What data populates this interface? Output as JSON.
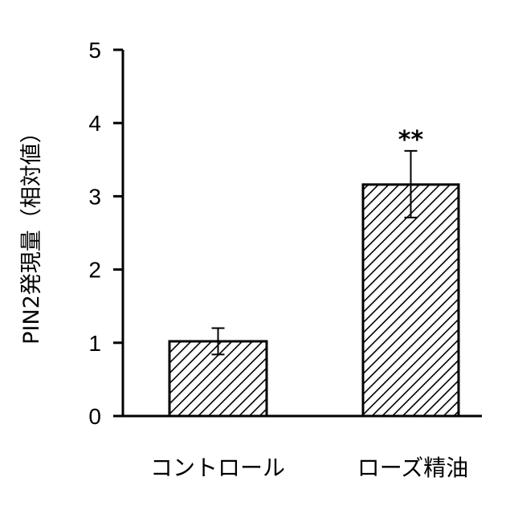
{
  "chart_data": {
    "type": "bar",
    "title": "",
    "xlabel": "",
    "ylabel": "PIN2発現量（相対値）",
    "ylim": [
      0,
      5
    ],
    "yticks": [
      "0",
      "1",
      "2",
      "3",
      "4",
      "5"
    ],
    "categories": [
      "コントロール",
      "ローズ精油"
    ],
    "values": [
      1.02,
      3.16
    ],
    "error_upper": [
      1.2,
      3.62
    ],
    "error_lower": [
      0.84,
      2.71
    ],
    "annotations": [
      "",
      "**"
    ],
    "grid": false,
    "bar_fill": "diagonal-hatch",
    "colors": {
      "bar_edge": "#000000",
      "hatch": "#000000",
      "background": "#ffffff"
    }
  }
}
